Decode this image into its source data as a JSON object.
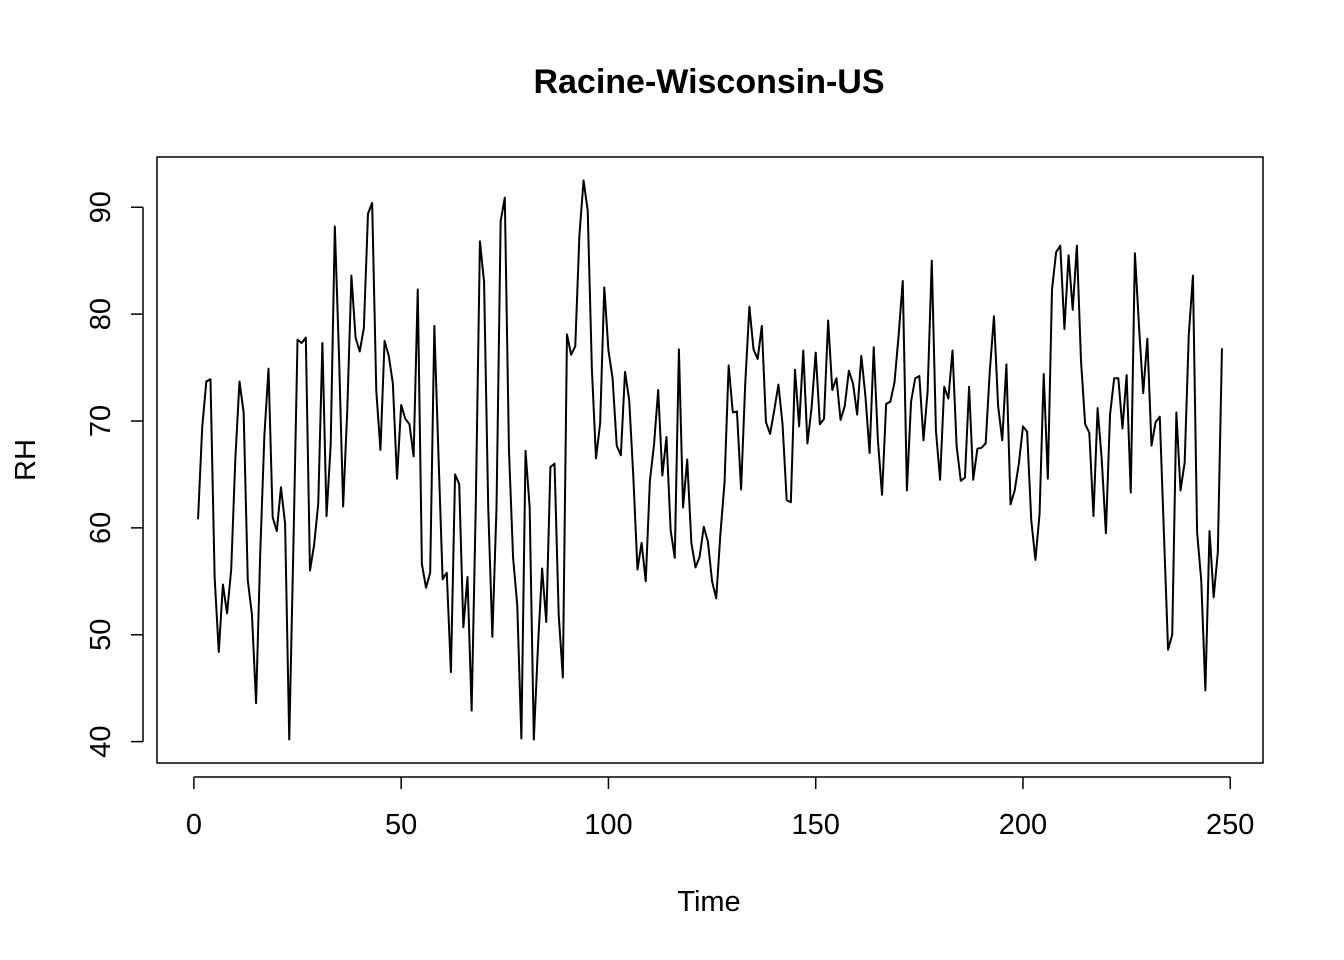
{
  "chart_data": {
    "type": "line",
    "title": "Racine-Wisconsin-US",
    "xlabel": "Time",
    "ylabel": "RH",
    "xlim": [
      -8.9,
      257.9
    ],
    "ylim": [
      38.0,
      94.7
    ],
    "x_ticks": [
      0,
      50,
      100,
      150,
      200,
      250
    ],
    "y_ticks": [
      40,
      50,
      60,
      70,
      80,
      90
    ],
    "x_tick_labels": [
      "0",
      "50",
      "100",
      "150",
      "200",
      "250"
    ],
    "y_tick_labels": [
      "40",
      "50",
      "60",
      "70",
      "80",
      "90"
    ],
    "grid": false,
    "legend": false,
    "line_color": "#000000",
    "x_start": 1,
    "series": [
      {
        "values": [
          60.8,
          69.4,
          73.7,
          73.9,
          55.4,
          48.4,
          54.7,
          52.0,
          56.1,
          66.5,
          73.7,
          70.8,
          55.1,
          51.9,
          43.6,
          57.6,
          68.6,
          74.9,
          61.0,
          59.7,
          63.8,
          60.4,
          40.2,
          58.2,
          77.6,
          77.3,
          77.8,
          56.0,
          58.4,
          62.3,
          77.3,
          61.1,
          67.8,
          88.2,
          76.2,
          62.0,
          71.0,
          83.6,
          77.8,
          76.5,
          78.7,
          89.4,
          90.4,
          72.8,
          67.3,
          77.5,
          76.1,
          73.5,
          64.6,
          71.5,
          70.2,
          69.7,
          66.7,
          82.3,
          56.6,
          54.4,
          55.8,
          78.9,
          66.8,
          55.2,
          55.8,
          46.5,
          65.0,
          64.1,
          50.7,
          55.4,
          42.9,
          62.1,
          86.8,
          83.0,
          61.9,
          49.8,
          61.9,
          88.7,
          90.9,
          67.3,
          57.2,
          52.8,
          40.3,
          67.2,
          61.9,
          40.2,
          48.9,
          56.2,
          51.2,
          65.7,
          66.0,
          51.9,
          46.0,
          78.1,
          76.2,
          77.0,
          87.4,
          92.5,
          89.7,
          74.9,
          66.5,
          69.8,
          82.5,
          76.6,
          74.0,
          67.7,
          66.8,
          74.6,
          72.0,
          64.8,
          56.1,
          58.6,
          55.0,
          64.4,
          67.8,
          72.9,
          64.9,
          68.5,
          59.8,
          57.2,
          76.7,
          61.9,
          66.4,
          58.6,
          56.3,
          57.3,
          60.1,
          58.7,
          55.0,
          53.4,
          59.4,
          64.2,
          75.2,
          70.8,
          70.9,
          63.6,
          73.5,
          80.7,
          76.7,
          75.8,
          78.9,
          69.9,
          68.8,
          71.0,
          73.4,
          69.7,
          62.6,
          62.4,
          74.8,
          69.5,
          76.6,
          67.9,
          71.2,
          76.4,
          69.7,
          70.2,
          79.4,
          72.9,
          74.0,
          70.1,
          71.4,
          74.7,
          73.5,
          70.6,
          76.1,
          72.3,
          67.0,
          76.9,
          68.2,
          63.1,
          71.6,
          71.8,
          73.6,
          78.0,
          83.1,
          63.5,
          71.8,
          74.0,
          74.2,
          68.2,
          72.8,
          85.0,
          69.1,
          64.5,
          73.2,
          72.1,
          76.6,
          67.6,
          64.4,
          64.7,
          73.2,
          64.5,
          67.4,
          67.5,
          67.9,
          74.7,
          79.8,
          71.4,
          68.2,
          75.3,
          62.2,
          63.5,
          66.0,
          69.5,
          69.0,
          60.7,
          57.0,
          61.3,
          74.4,
          64.6,
          82.3,
          85.8,
          86.4,
          78.6,
          85.5,
          80.4,
          86.4,
          75.6,
          69.7,
          68.9,
          61.1,
          71.2,
          66.4,
          59.5,
          70.6,
          74.0,
          74.0,
          69.3,
          74.3,
          63.3,
          85.7,
          78.8,
          72.6,
          77.7,
          67.7,
          69.9,
          70.4,
          59.5,
          48.6,
          50.0,
          70.8,
          63.5,
          66.1,
          78.1,
          83.6,
          59.6,
          55.1,
          44.8,
          59.7,
          53.5,
          57.7,
          76.8
        ]
      }
    ]
  }
}
